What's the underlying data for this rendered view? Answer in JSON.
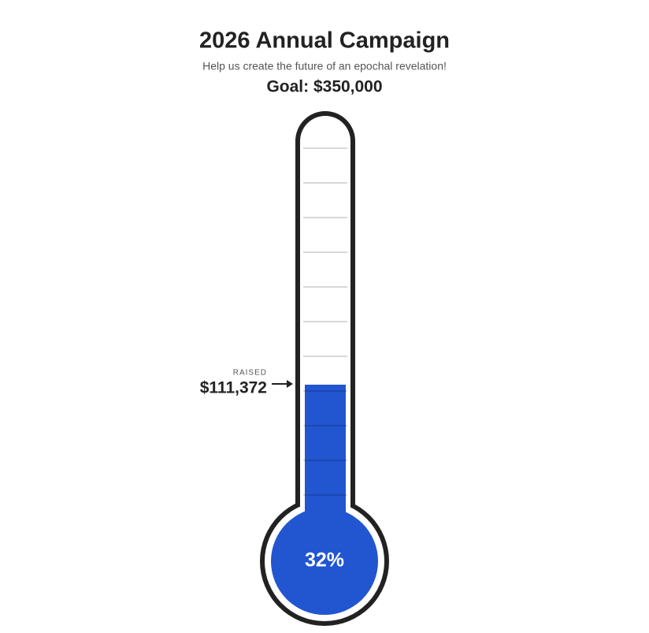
{
  "chart_data": {
    "type": "thermometer",
    "title": "2026 Annual Campaign",
    "subtitle": "Help us create the future of an epochal revelation!",
    "goal": {
      "value": 350000,
      "label": "Goal: $350,000"
    },
    "raised_label": "RAISED",
    "values": [
      111372
    ],
    "value_labels": [
      "$111,372"
    ],
    "percent": {
      "value": 32,
      "label": "32%"
    },
    "color": "#2255d0",
    "ylim": [
      0,
      350000
    ],
    "yticks": [
      0,
      35000,
      70000,
      105000,
      140000,
      175000,
      210000,
      245000,
      280000,
      315000,
      350000
    ],
    "grid": true
  }
}
